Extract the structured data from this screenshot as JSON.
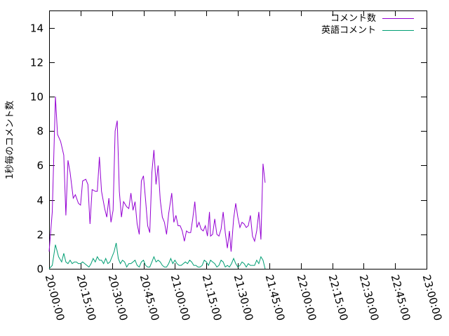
{
  "chart_data": {
    "type": "line",
    "ylabel": "1秒毎のコメント数",
    "xlabel": "",
    "ylim": [
      0,
      15
    ],
    "yticks": [
      0,
      2,
      4,
      6,
      8,
      10,
      12,
      14
    ],
    "xlim": [
      0,
      180
    ],
    "xticks": [
      0,
      15,
      30,
      45,
      60,
      75,
      90,
      105,
      120,
      135,
      150,
      165,
      180
    ],
    "xtick_labels": [
      "20:00:00",
      "20:15:00",
      "20:30:00",
      "20:45:00",
      "21:00:00",
      "21:15:00",
      "21:30:00",
      "21:45:00",
      "22:00:00",
      "22:15:00",
      "22:30:00",
      "22:45:00",
      "23:00:00"
    ],
    "x_unit": "minutes after 20:00:00",
    "grid": false,
    "legend_position": "top-right",
    "series": [
      {
        "name": "コメント数",
        "color": "#9400d3",
        "points": [
          [
            0,
            1.0
          ],
          [
            1.5,
            3.3
          ],
          [
            3.0,
            10.0
          ],
          [
            4.0,
            7.8
          ],
          [
            5.5,
            7.4
          ],
          [
            7.0,
            6.6
          ],
          [
            8.0,
            3.1
          ],
          [
            9.0,
            6.3
          ],
          [
            10.0,
            5.6
          ],
          [
            11.5,
            4.1
          ],
          [
            12.5,
            4.3
          ],
          [
            14.0,
            3.8
          ],
          [
            15.0,
            3.7
          ],
          [
            16.0,
            5.1
          ],
          [
            17.5,
            5.2
          ],
          [
            18.5,
            4.9
          ],
          [
            19.5,
            2.6
          ],
          [
            20.5,
            4.6
          ],
          [
            22.0,
            4.5
          ],
          [
            23.0,
            4.5
          ],
          [
            24.0,
            6.5
          ],
          [
            25.0,
            4.5
          ],
          [
            26.5,
            3.5
          ],
          [
            27.5,
            3.0
          ],
          [
            28.5,
            4.1
          ],
          [
            29.5,
            2.7
          ],
          [
            30.5,
            3.4
          ],
          [
            31.5,
            8.0
          ],
          [
            32.5,
            8.6
          ],
          [
            33.5,
            4.5
          ],
          [
            34.5,
            3.0
          ],
          [
            35.5,
            3.9
          ],
          [
            37.0,
            3.6
          ],
          [
            38.0,
            3.5
          ],
          [
            39.0,
            4.4
          ],
          [
            40.0,
            3.4
          ],
          [
            41.0,
            3.9
          ],
          [
            42.0,
            2.6
          ],
          [
            43.0,
            2.0
          ],
          [
            44.0,
            5.1
          ],
          [
            45.0,
            5.4
          ],
          [
            46.0,
            4.0
          ],
          [
            47.0,
            2.5
          ],
          [
            48.0,
            2.1
          ],
          [
            49.0,
            5.6
          ],
          [
            50.0,
            6.9
          ],
          [
            51.0,
            4.9
          ],
          [
            52.0,
            6.0
          ],
          [
            53.0,
            4.0
          ],
          [
            54.0,
            3.0
          ],
          [
            55.0,
            2.7
          ],
          [
            56.0,
            2.0
          ],
          [
            57.0,
            3.2
          ],
          [
            58.5,
            4.4
          ],
          [
            59.5,
            2.7
          ],
          [
            60.5,
            3.1
          ],
          [
            61.5,
            2.5
          ],
          [
            62.5,
            2.5
          ],
          [
            63.5,
            2.2
          ],
          [
            64.5,
            1.6
          ],
          [
            65.5,
            2.2
          ],
          [
            66.5,
            2.1
          ],
          [
            67.5,
            2.1
          ],
          [
            68.5,
            2.9
          ],
          [
            69.5,
            3.9
          ],
          [
            70.5,
            2.4
          ],
          [
            71.5,
            2.7
          ],
          [
            72.5,
            2.3
          ],
          [
            73.5,
            2.2
          ],
          [
            74.5,
            2.5
          ],
          [
            75.5,
            1.9
          ],
          [
            76.5,
            3.3
          ],
          [
            77.0,
            1.9
          ],
          [
            78.0,
            2.0
          ],
          [
            79.0,
            2.9
          ],
          [
            80.0,
            2.0
          ],
          [
            81.0,
            1.9
          ],
          [
            82.0,
            2.3
          ],
          [
            83.0,
            3.3
          ],
          [
            84.0,
            2.1
          ],
          [
            85.0,
            1.2
          ],
          [
            86.0,
            2.2
          ],
          [
            86.8,
            1.0
          ],
          [
            88.0,
            2.9
          ],
          [
            89.0,
            3.8
          ],
          [
            90.0,
            3.0
          ],
          [
            91.0,
            2.4
          ],
          [
            92.0,
            2.7
          ],
          [
            93.0,
            2.6
          ],
          [
            94.0,
            2.4
          ],
          [
            95.0,
            2.5
          ],
          [
            96.0,
            3.1
          ],
          [
            97.0,
            1.9
          ],
          [
            98.0,
            1.6
          ],
          [
            99.0,
            2.2
          ],
          [
            100.0,
            3.3
          ],
          [
            101.0,
            1.7
          ],
          [
            102.0,
            6.1
          ],
          [
            103.0,
            5.0
          ]
        ]
      },
      {
        "name": "英語コメント",
        "color": "#009e73",
        "points": [
          [
            0,
            0.0
          ],
          [
            1.5,
            0.2
          ],
          [
            3.0,
            1.4
          ],
          [
            4.5,
            0.7
          ],
          [
            6.0,
            0.4
          ],
          [
            7.0,
            0.9
          ],
          [
            8.0,
            0.4
          ],
          [
            9.0,
            0.3
          ],
          [
            10.0,
            0.5
          ],
          [
            11.0,
            0.3
          ],
          [
            12.0,
            0.4
          ],
          [
            13.0,
            0.4
          ],
          [
            14.0,
            0.3
          ],
          [
            15.0,
            0.3
          ],
          [
            16.0,
            0.4
          ],
          [
            17.0,
            0.3
          ],
          [
            18.0,
            0.2
          ],
          [
            19.0,
            0.1
          ],
          [
            20.0,
            0.3
          ],
          [
            21.0,
            0.6
          ],
          [
            22.0,
            0.4
          ],
          [
            23.0,
            0.7
          ],
          [
            24.0,
            0.5
          ],
          [
            25.0,
            0.5
          ],
          [
            26.0,
            0.3
          ],
          [
            27.0,
            0.6
          ],
          [
            28.0,
            0.3
          ],
          [
            29.0,
            0.4
          ],
          [
            30.0,
            0.7
          ],
          [
            31.0,
            1.0
          ],
          [
            32.0,
            1.5
          ],
          [
            33.0,
            0.6
          ],
          [
            34.0,
            0.3
          ],
          [
            35.0,
            0.5
          ],
          [
            36.0,
            0.4
          ],
          [
            37.0,
            0.1
          ],
          [
            38.0,
            0.3
          ],
          [
            39.0,
            0.3
          ],
          [
            40.0,
            0.4
          ],
          [
            41.0,
            0.5
          ],
          [
            42.0,
            0.2
          ],
          [
            43.0,
            0.1
          ],
          [
            44.0,
            0.4
          ],
          [
            45.0,
            0.5
          ],
          [
            46.0,
            0.2
          ],
          [
            47.0,
            0.1
          ],
          [
            48.0,
            0.1
          ],
          [
            49.0,
            0.4
          ],
          [
            50.0,
            0.7
          ],
          [
            51.0,
            0.4
          ],
          [
            52.0,
            0.5
          ],
          [
            53.0,
            0.4
          ],
          [
            54.0,
            0.2
          ],
          [
            55.0,
            0.1
          ],
          [
            56.0,
            0.1
          ],
          [
            57.0,
            0.3
          ],
          [
            58.0,
            0.6
          ],
          [
            59.0,
            0.3
          ],
          [
            60.0,
            0.5
          ],
          [
            61.0,
            0.3
          ],
          [
            62.0,
            0.2
          ],
          [
            63.0,
            0.2
          ],
          [
            64.0,
            0.3
          ],
          [
            65.0,
            0.4
          ],
          [
            66.0,
            0.3
          ],
          [
            67.0,
            0.5
          ],
          [
            68.0,
            0.4
          ],
          [
            69.0,
            0.2
          ],
          [
            70.0,
            0.2
          ],
          [
            71.0,
            0.1
          ],
          [
            72.0,
            0.1
          ],
          [
            73.0,
            0.2
          ],
          [
            74.0,
            0.5
          ],
          [
            75.0,
            0.4
          ],
          [
            76.0,
            0.2
          ],
          [
            77.0,
            0.5
          ],
          [
            78.0,
            0.4
          ],
          [
            79.0,
            0.3
          ],
          [
            80.0,
            0.1
          ],
          [
            81.0,
            0.2
          ],
          [
            82.0,
            0.5
          ],
          [
            83.0,
            0.4
          ],
          [
            84.0,
            0.1
          ],
          [
            85.0,
            0.2
          ],
          [
            86.0,
            0.1
          ],
          [
            87.0,
            0.3
          ],
          [
            88.0,
            0.6
          ],
          [
            89.0,
            0.3
          ],
          [
            90.0,
            0.1
          ],
          [
            91.0,
            0.2
          ],
          [
            92.0,
            0.4
          ],
          [
            93.0,
            0.3
          ],
          [
            94.0,
            0.1
          ],
          [
            95.0,
            0.3
          ],
          [
            96.0,
            0.2
          ],
          [
            97.0,
            0.2
          ],
          [
            98.0,
            0.2
          ],
          [
            99.0,
            0.5
          ],
          [
            100.0,
            0.3
          ],
          [
            101.0,
            0.7
          ],
          [
            102.0,
            0.5
          ],
          [
            103.0,
            0.0
          ]
        ]
      }
    ]
  }
}
